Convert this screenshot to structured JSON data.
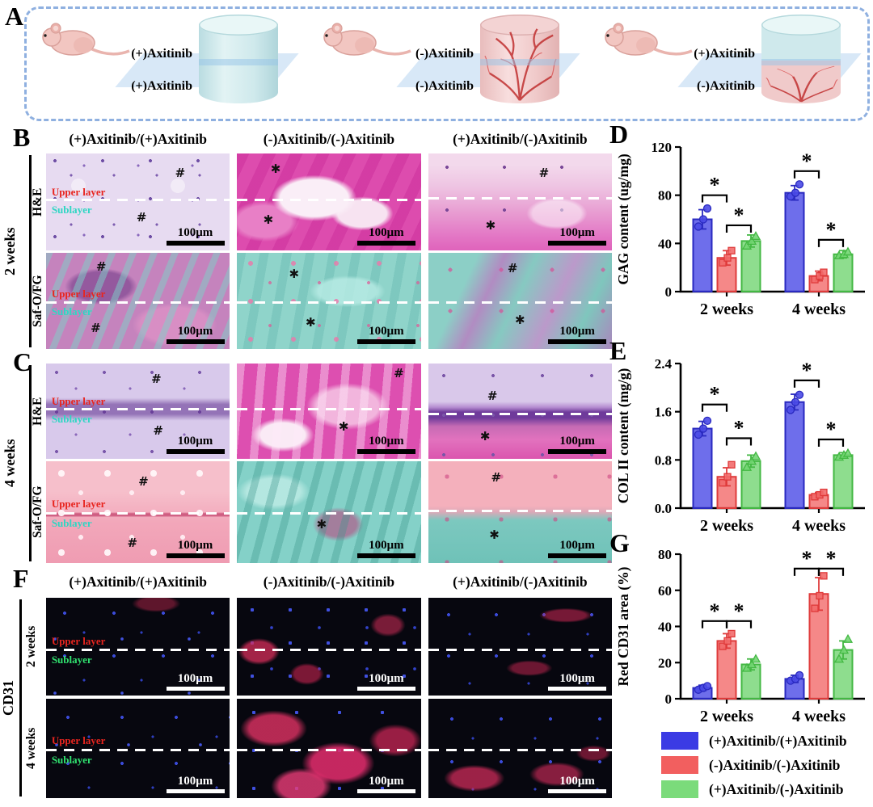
{
  "group_headers": [
    "(+)Axitinib/(+)Axitinib",
    "(-)Axitinib/(-)Axitinib",
    "(+)Axitinib/(-)Axitinib"
  ],
  "panel_a": {
    "label": "A",
    "groups": [
      {
        "top_label": "(+)Axitinib",
        "bottom_label": "(+)Axitinib",
        "scaffold": "plain"
      },
      {
        "top_label": "(-)Axitinib",
        "bottom_label": "(-)Axitinib",
        "scaffold": "vascularized"
      },
      {
        "top_label": "(+)Axitinib",
        "bottom_label": "(-)Axitinib",
        "scaffold": "half-vascularized"
      }
    ]
  },
  "tile_text": {
    "upper": "Upper layer",
    "sub": "Sublayer",
    "scale": "100μm"
  },
  "panel_b": {
    "label": "B",
    "side_label": "2 weeks",
    "rows": [
      {
        "stain": "H&E",
        "tiles": [
          {
            "variant": "tx-b-he-1",
            "layers": true,
            "line_y": 47,
            "marks": [
              {
                "g": "#",
                "x": 73,
                "y": 20
              },
              {
                "g": "#",
                "x": 52,
                "y": 66
              }
            ]
          },
          {
            "variant": "tx-b-he-2",
            "layers": false,
            "line_y": 47,
            "marks": [
              {
                "g": "✱",
                "x": 21,
                "y": 16
              },
              {
                "g": "✱",
                "x": 17,
                "y": 68
              }
            ]
          },
          {
            "variant": "tx-b-he-3",
            "layers": false,
            "line_y": 45,
            "marks": [
              {
                "g": "#",
                "x": 63,
                "y": 20
              },
              {
                "g": "✱",
                "x": 34,
                "y": 74
              }
            ]
          }
        ]
      },
      {
        "stain": "Saf-O/FG",
        "tiles": [
          {
            "variant": "tx-b-so-1",
            "layers": true,
            "line_y": 50,
            "marks": [
              {
                "g": "#",
                "x": 30,
                "y": 14
              },
              {
                "g": "#",
                "x": 27,
                "y": 78
              }
            ]
          },
          {
            "variant": "tx-b-so-2",
            "layers": false,
            "line_y": 50,
            "marks": [
              {
                "g": "✱",
                "x": 31,
                "y": 22
              },
              {
                "g": "✱",
                "x": 40,
                "y": 72
              }
            ]
          },
          {
            "variant": "tx-b-so-3",
            "layers": false,
            "line_y": 50,
            "marks": [
              {
                "g": "#",
                "x": 46,
                "y": 16
              },
              {
                "g": "✱",
                "x": 50,
                "y": 70
              }
            ]
          }
        ]
      }
    ]
  },
  "panel_c": {
    "label": "C",
    "side_label": "4 weeks",
    "rows": [
      {
        "stain": "H&E",
        "tiles": [
          {
            "variant": "tx-c-he-1",
            "layers": true,
            "line_y": 47,
            "marks": [
              {
                "g": "#",
                "x": 60,
                "y": 16
              },
              {
                "g": "#",
                "x": 61,
                "y": 70
              }
            ]
          },
          {
            "variant": "tx-c-he-2",
            "layers": false,
            "line_y": 47,
            "marks": [
              {
                "g": "#",
                "x": 88,
                "y": 10
              },
              {
                "g": "✱",
                "x": 58,
                "y": 66
              }
            ]
          },
          {
            "variant": "tx-c-he-3",
            "layers": false,
            "line_y": 52,
            "marks": [
              {
                "g": "#",
                "x": 35,
                "y": 34
              },
              {
                "g": "✱",
                "x": 31,
                "y": 76
              }
            ]
          }
        ]
      },
      {
        "stain": "Saf-O/FG",
        "tiles": [
          {
            "variant": "tx-c-so-1",
            "layers": true,
            "line_y": 50,
            "marks": [
              {
                "g": "#",
                "x": 53,
                "y": 20
              },
              {
                "g": "#",
                "x": 47,
                "y": 80
              }
            ]
          },
          {
            "variant": "tx-c-so-2",
            "layers": false,
            "line_y": 50,
            "marks": [
              {
                "g": "✱",
                "x": 46,
                "y": 62
              }
            ]
          },
          {
            "variant": "tx-c-so-3",
            "layers": false,
            "line_y": 48,
            "marks": [
              {
                "g": "#",
                "x": 37,
                "y": 16
              },
              {
                "g": "✱",
                "x": 36,
                "y": 72
              }
            ]
          }
        ]
      }
    ]
  },
  "panel_f": {
    "label": "F",
    "side_label": "CD31",
    "rows": [
      {
        "row_label": "2 weeks",
        "tiles": [
          {
            "variant": "tx-f-1",
            "layers": true,
            "line_y": 52,
            "marks": []
          },
          {
            "variant": "tx-f-2",
            "layers": false,
            "line_y": 52,
            "marks": []
          },
          {
            "variant": "tx-f-3",
            "layers": false,
            "line_y": 52,
            "marks": []
          }
        ]
      },
      {
        "row_label": "4 weeks",
        "tiles": [
          {
            "variant": "tx-f-4",
            "layers": true,
            "line_y": 50,
            "marks": []
          },
          {
            "variant": "tx-f-5",
            "layers": false,
            "line_y": 50,
            "marks": []
          },
          {
            "variant": "tx-f-6",
            "layers": false,
            "line_y": 50,
            "marks": []
          }
        ]
      }
    ]
  },
  "chart_data": [
    {
      "id": "D",
      "type": "bar",
      "panel_label": "D",
      "ylabel": "GAG content (ug/mg)",
      "ylim": [
        0,
        120
      ],
      "yticks": [
        "0",
        "40",
        "80",
        "120"
      ],
      "categories": [
        "2 weeks",
        "4 weeks"
      ],
      "series": [
        {
          "name": "(+)Axitinib/(+)Axitinib",
          "color": "#4a4ae6",
          "edge": "#2a2ac0",
          "marker": "circle",
          "values": [
            60,
            82
          ],
          "errors": [
            8,
            6
          ],
          "points": [
            [
              54,
              60,
              69
            ],
            [
              79,
              82,
              89
            ]
          ]
        },
        {
          "name": "(-)Axitinib/(-)Axitinib",
          "color": "#f26a6a",
          "edge": "#df3b3b",
          "marker": "square",
          "values": [
            28,
            13
          ],
          "errors": [
            6,
            4
          ],
          "points": [
            [
              24,
              28,
              34
            ],
            [
              10,
              13,
              16
            ]
          ]
        },
        {
          "name": "(+)Axitinib/(-)Axitinib",
          "color": "#72d572",
          "edge": "#43b843",
          "marker": "triangle",
          "values": [
            42,
            31
          ],
          "errors": [
            5,
            3
          ],
          "points": [
            [
              38,
              42,
              46
            ],
            [
              30,
              31,
              33
            ]
          ]
        }
      ],
      "sig_brackets": [
        {
          "cat": 0,
          "from": 0,
          "to": 1,
          "y": 80,
          "label": "*"
        },
        {
          "cat": 0,
          "from": 1,
          "to": 2,
          "y": 55,
          "label": "*"
        },
        {
          "cat": 1,
          "from": 0,
          "to": 1,
          "y": 100,
          "label": "*"
        },
        {
          "cat": 1,
          "from": 1,
          "to": 2,
          "y": 43,
          "label": "*"
        }
      ]
    },
    {
      "id": "E",
      "type": "bar",
      "panel_label": "E",
      "ylabel": "COL II content (mg/g)",
      "ylim": [
        0,
        2.4
      ],
      "yticks": [
        "0.0",
        "0.8",
        "1.6",
        "2.4"
      ],
      "categories": [
        "2 weeks",
        "4 weeks"
      ],
      "series": [
        {
          "name": "(+)Axitinib/(+)Axitinib",
          "color": "#4a4ae6",
          "edge": "#2a2ac0",
          "marker": "circle",
          "values": [
            1.32,
            1.76
          ],
          "errors": [
            0.12,
            0.13
          ],
          "points": [
            [
              1.22,
              1.32,
              1.45
            ],
            [
              1.63,
              1.76,
              1.88
            ]
          ]
        },
        {
          "name": "(-)Axitinib/(-)Axitinib",
          "color": "#f26a6a",
          "edge": "#df3b3b",
          "marker": "square",
          "values": [
            0.52,
            0.22
          ],
          "errors": [
            0.15,
            0.04
          ],
          "points": [
            [
              0.42,
              0.52,
              0.72
            ],
            [
              0.19,
              0.22,
              0.26
            ]
          ]
        },
        {
          "name": "(+)Axitinib/(-)Axitinib",
          "color": "#72d572",
          "edge": "#43b843",
          "marker": "triangle",
          "values": [
            0.78,
            0.88
          ],
          "errors": [
            0.1,
            0.04
          ],
          "points": [
            [
              0.68,
              0.78,
              0.86
            ],
            [
              0.85,
              0.88,
              0.91
            ]
          ]
        }
      ],
      "sig_brackets": [
        {
          "cat": 0,
          "from": 0,
          "to": 1,
          "y": 1.72,
          "label": "*"
        },
        {
          "cat": 0,
          "from": 1,
          "to": 2,
          "y": 1.16,
          "label": "*"
        },
        {
          "cat": 1,
          "from": 0,
          "to": 1,
          "y": 2.12,
          "label": "*"
        },
        {
          "cat": 1,
          "from": 1,
          "to": 2,
          "y": 1.14,
          "label": "*"
        }
      ]
    },
    {
      "id": "G",
      "type": "bar",
      "panel_label": "G",
      "ylabel": "Red CD31 area (%)",
      "ylim": [
        0,
        80
      ],
      "yticks": [
        "0",
        "20",
        "40",
        "60",
        "80"
      ],
      "categories": [
        "2 weeks",
        "4 weeks"
      ],
      "series": [
        {
          "name": "(+)Axitinib/(+)Axitinib",
          "color": "#4a4ae6",
          "edge": "#2a2ac0",
          "marker": "circle",
          "values": [
            6,
            11
          ],
          "errors": [
            1.5,
            2
          ],
          "points": [
            [
              5,
              6,
              7
            ],
            [
              10,
              11,
              13
            ]
          ]
        },
        {
          "name": "(-)Axitinib/(-)Axitinib",
          "color": "#f26a6a",
          "edge": "#df3b3b",
          "marker": "square",
          "values": [
            32,
            58
          ],
          "errors": [
            4,
            9
          ],
          "points": [
            [
              29,
              32,
              36
            ],
            [
              50,
              57,
              68
            ]
          ]
        },
        {
          "name": "(+)Axitinib/(-)Axitinib",
          "color": "#72d572",
          "edge": "#43b843",
          "marker": "triangle",
          "values": [
            19,
            27
          ],
          "errors": [
            3,
            5
          ],
          "points": [
            [
              17,
              19,
              22
            ],
            [
              22,
              27,
              33
            ]
          ]
        }
      ],
      "sig_brackets": [
        {
          "cat": 0,
          "from": 0,
          "to": 1,
          "y": 43,
          "label": "*"
        },
        {
          "cat": 0,
          "from": 1,
          "to": 2,
          "y": 43,
          "label": "*"
        },
        {
          "cat": 1,
          "from": 0,
          "to": 1,
          "y": 72,
          "label": "*"
        },
        {
          "cat": 1,
          "from": 1,
          "to": 2,
          "y": 72,
          "label": "*"
        }
      ]
    }
  ],
  "legend": {
    "items": [
      {
        "label": "(+)Axitinib/(+)Axitinib",
        "color": "#3b3be4"
      },
      {
        "label": "(-)Axitinib/(-)Axitinib",
        "color": "#f25f5f"
      },
      {
        "label": "(+)Axitinib/(-)Axitinib",
        "color": "#7bdb7b"
      }
    ]
  }
}
